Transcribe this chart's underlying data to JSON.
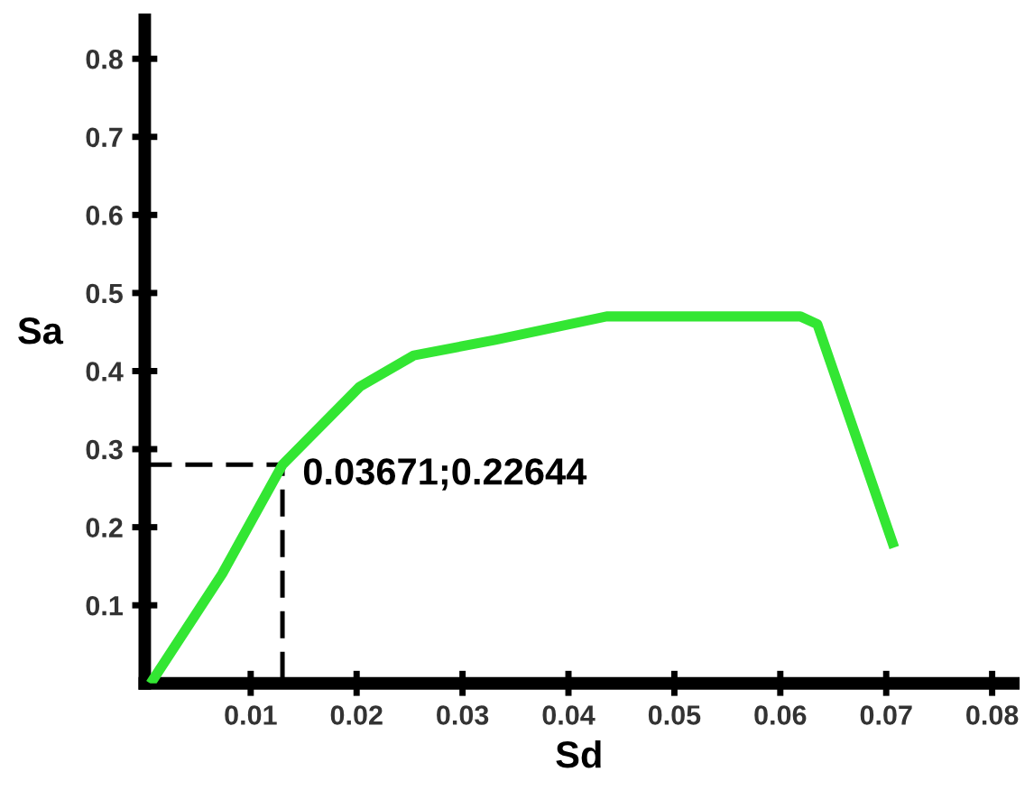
{
  "chart_data": {
    "type": "line",
    "xlabel": "Sd",
    "ylabel": "Sa",
    "annotations": [
      "0.03671;0.22644"
    ],
    "series": [
      {
        "color": "#33e633",
        "x": [
          0.0008,
          0.0073,
          0.013,
          0.0203,
          0.0254,
          0.0331,
          0.0436,
          0.0619,
          0.0635,
          0.0706
        ],
        "values": [
          0.005,
          0.14,
          0.28,
          0.38,
          0.42,
          0.44,
          0.47,
          0.47,
          0.46,
          0.18
        ]
      },
      {
        "color": "#000000",
        "line_style": "dashed",
        "x": [
          0,
          0.013,
          0.013
        ],
        "values": [
          0.28,
          0.28,
          0
        ]
      }
    ],
    "xlim": [
      0,
      0.082
    ],
    "ylim": [
      0,
      0.85
    ],
    "xticks": [
      0.01,
      0.02,
      0.03,
      0.04,
      0.05,
      0.06,
      0.07,
      0.08
    ],
    "yticks": [
      0.1,
      0.2,
      0.3,
      0.4,
      0.5,
      0.6,
      0.7,
      0.8
    ],
    "grid": false,
    "legend": false,
    "marker": "none",
    "line_style": "solid"
  }
}
